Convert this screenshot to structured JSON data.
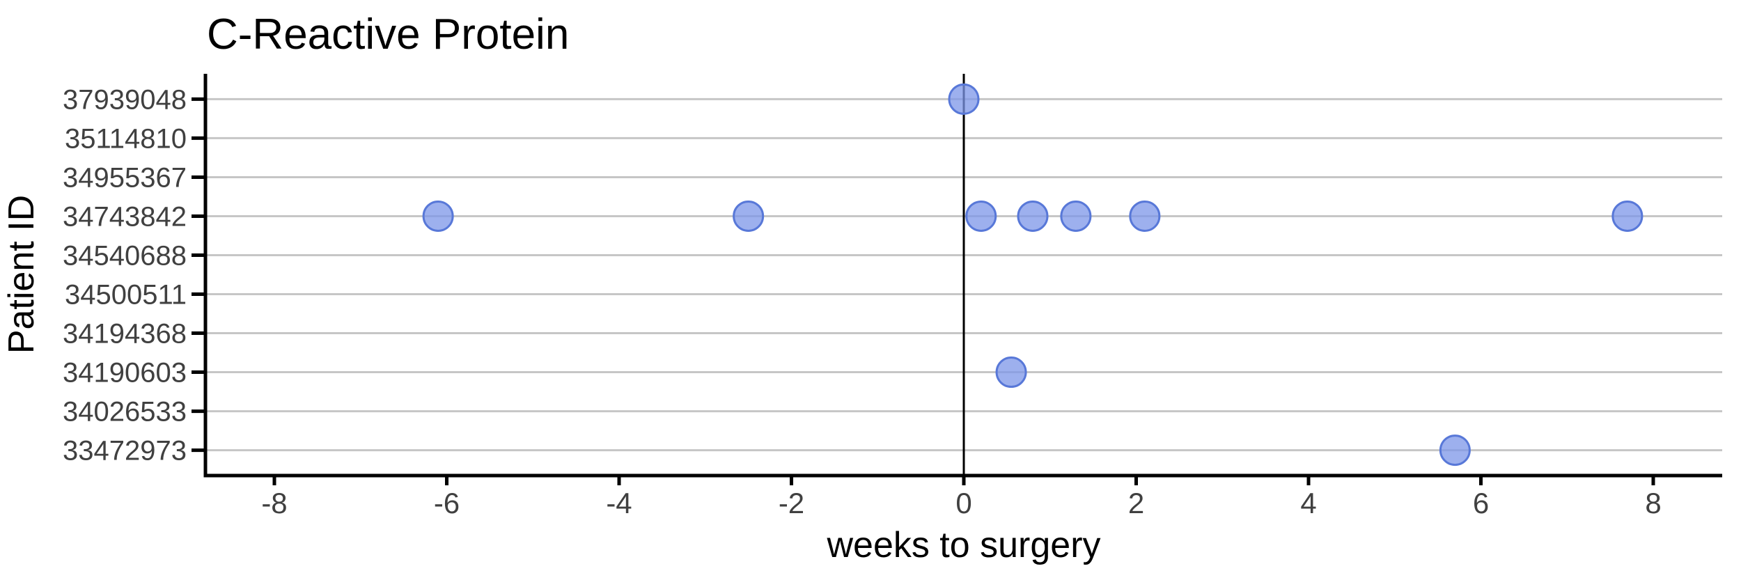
{
  "chart": {
    "title": "C-Reactive Protein",
    "xlabel": "weeks to surgery",
    "ylabel": "Patient ID"
  },
  "chart_data": {
    "type": "scatter",
    "title": "C-Reactive Protein",
    "xlabel": "weeks to surgery",
    "ylabel": "Patient ID",
    "y_categories": [
      "37939048",
      "35114810",
      "34955367",
      "34743842",
      "34540688",
      "34500511",
      "34194368",
      "34190603",
      "34026533",
      "33472973"
    ],
    "x_ticks": [
      -8,
      -6,
      -4,
      -2,
      0,
      2,
      4,
      6,
      8
    ],
    "xlim": [
      -8.8,
      8.8
    ],
    "grid": "horizontal-only",
    "legend_position": "none",
    "reference_line_x": 0,
    "points": [
      {
        "patient_id": "37939048",
        "weeks": 0.0
      },
      {
        "patient_id": "34743842",
        "weeks": -6.1
      },
      {
        "patient_id": "34743842",
        "weeks": -2.5
      },
      {
        "patient_id": "34743842",
        "weeks": 0.2
      },
      {
        "patient_id": "34743842",
        "weeks": 0.8
      },
      {
        "patient_id": "34743842",
        "weeks": 1.3
      },
      {
        "patient_id": "34743842",
        "weeks": 2.1
      },
      {
        "patient_id": "34743842",
        "weeks": 7.7
      },
      {
        "patient_id": "34190603",
        "weeks": 0.55
      },
      {
        "patient_id": "33472973",
        "weeks": 5.7
      }
    ]
  },
  "style": {
    "point_fill": "#7C96E8",
    "point_stroke": "#5878D8",
    "point_opacity": 0.75,
    "grid_color": "#C6C6C6",
    "axis_color": "#000000",
    "reference_line_color": "#000000",
    "tick_label_color": "#404040",
    "title_color": "#000000",
    "axis_title_color": "#000000"
  }
}
